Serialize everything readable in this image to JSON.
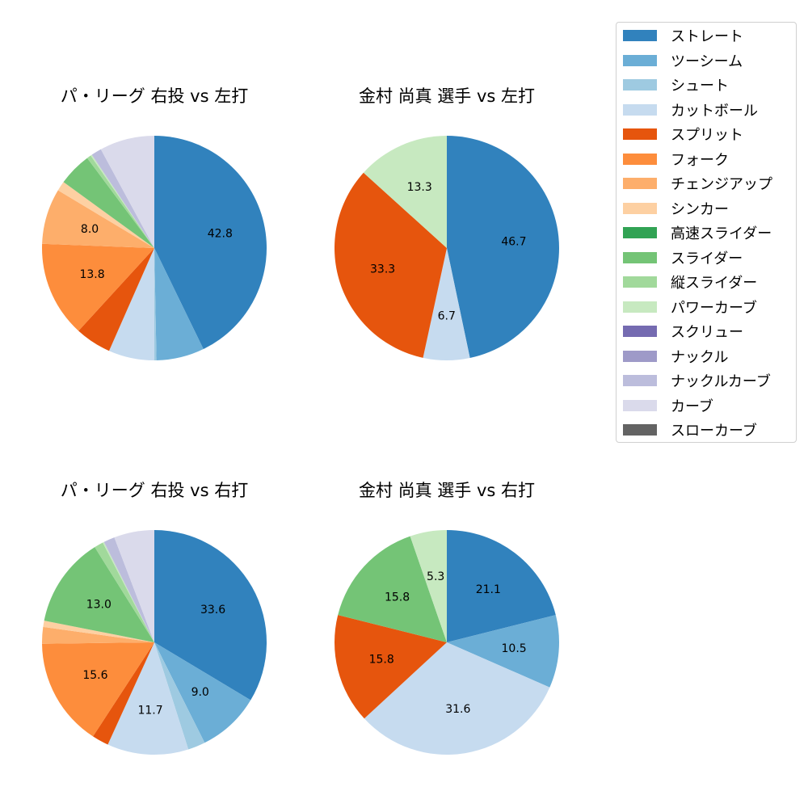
{
  "legend": {
    "items": [
      {
        "label": "ストレート",
        "color": "#3182bd"
      },
      {
        "label": "ツーシーム",
        "color": "#6baed6"
      },
      {
        "label": "シュート",
        "color": "#9ecae1"
      },
      {
        "label": "カットボール",
        "color": "#c6dbef"
      },
      {
        "label": "スプリット",
        "color": "#e6550d"
      },
      {
        "label": "フォーク",
        "color": "#fd8d3c"
      },
      {
        "label": "チェンジアップ",
        "color": "#fdae6b"
      },
      {
        "label": "シンカー",
        "color": "#fdd0a2"
      },
      {
        "label": "高速スライダー",
        "color": "#31a354"
      },
      {
        "label": "スライダー",
        "color": "#74c476"
      },
      {
        "label": "縦スライダー",
        "color": "#a1d99b"
      },
      {
        "label": "パワーカーブ",
        "color": "#c7e9c0"
      },
      {
        "label": "スクリュー",
        "color": "#756bb1"
      },
      {
        "label": "ナックル",
        "color": "#9e9ac8"
      },
      {
        "label": "ナックルカーブ",
        "color": "#bcbddc"
      },
      {
        "label": "カーブ",
        "color": "#dadaeb"
      },
      {
        "label": "スローカーブ",
        "color": "#636363"
      }
    ]
  },
  "chart_data": [
    {
      "type": "pie",
      "title": "パ・リーグ 右投 vs 左打",
      "start_angle": 90,
      "direction": "clockwise",
      "label_threshold": 8,
      "slices": [
        {
          "category": "ストレート",
          "value": 42.8,
          "label": "42.8"
        },
        {
          "category": "ツーシーム",
          "value": 6.9
        },
        {
          "category": "シュート",
          "value": 0.3
        },
        {
          "category": "カットボール",
          "value": 6.6
        },
        {
          "category": "スプリット",
          "value": 5.2
        },
        {
          "category": "フォーク",
          "value": 13.8,
          "label": "13.8"
        },
        {
          "category": "チェンジアップ",
          "value": 8.0,
          "label": "8.0"
        },
        {
          "category": "シンカー",
          "value": 1.4
        },
        {
          "category": "スライダー",
          "value": 4.8
        },
        {
          "category": "縦スライダー",
          "value": 0.6
        },
        {
          "category": "パワーカーブ",
          "value": 0.2
        },
        {
          "category": "ナックルカーブ",
          "value": 1.5
        },
        {
          "category": "カーブ",
          "value": 7.9
        }
      ]
    },
    {
      "type": "pie",
      "title": "金村 尚真 選手 vs 左打",
      "start_angle": 90,
      "direction": "clockwise",
      "slices": [
        {
          "category": "ストレート",
          "value": 46.7,
          "label": "46.7"
        },
        {
          "category": "カットボール",
          "value": 6.7,
          "label": "6.7"
        },
        {
          "category": "スプリット",
          "value": 33.3,
          "label": "33.3"
        },
        {
          "category": "パワーカーブ",
          "value": 13.3,
          "label": "13.3"
        }
      ]
    },
    {
      "type": "pie",
      "title": "パ・リーグ 右投 vs 右打",
      "start_angle": 90,
      "direction": "clockwise",
      "slices": [
        {
          "category": "ストレート",
          "value": 33.6,
          "label": "33.6"
        },
        {
          "category": "ツーシーム",
          "value": 9.0,
          "label": "9.0"
        },
        {
          "category": "シュート",
          "value": 2.5
        },
        {
          "category": "カットボール",
          "value": 11.7,
          "label": "11.7"
        },
        {
          "category": "スプリット",
          "value": 2.4
        },
        {
          "category": "フォーク",
          "value": 15.6,
          "label": "15.6"
        },
        {
          "category": "チェンジアップ",
          "value": 2.4
        },
        {
          "category": "シンカー",
          "value": 0.9
        },
        {
          "category": "スライダー",
          "value": 13.0,
          "label": "13.0"
        },
        {
          "category": "縦スライダー",
          "value": 1.3
        },
        {
          "category": "パワーカーブ",
          "value": 0.2
        },
        {
          "category": "ナックルカーブ",
          "value": 1.6
        },
        {
          "category": "カーブ",
          "value": 5.8
        }
      ]
    },
    {
      "type": "pie",
      "title": "金村 尚真 選手 vs 右打",
      "start_angle": 90,
      "direction": "clockwise",
      "slices": [
        {
          "category": "ストレート",
          "value": 21.1,
          "label": "21.1"
        },
        {
          "category": "ツーシーム",
          "value": 10.5,
          "label": "10.5"
        },
        {
          "category": "カットボール",
          "value": 31.6,
          "label": "31.6"
        },
        {
          "category": "スプリット",
          "value": 15.8,
          "label": "15.8"
        },
        {
          "category": "スライダー",
          "value": 15.8,
          "label": "15.8"
        },
        {
          "category": "パワーカーブ",
          "value": 5.3,
          "label": "5.3"
        }
      ]
    }
  ]
}
